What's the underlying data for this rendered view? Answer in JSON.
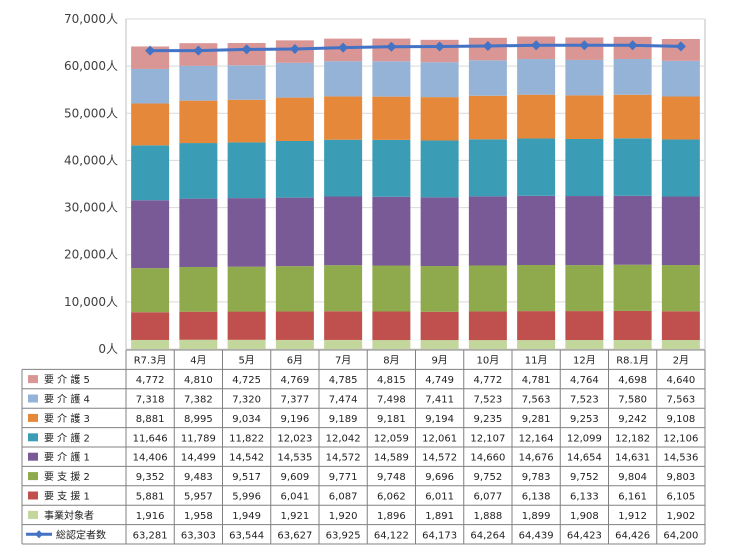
{
  "chart_data": {
    "type": "bar",
    "stacked": true,
    "categories": [
      "R7.3月",
      "4月",
      "5月",
      "6月",
      "7月",
      "8月",
      "9月",
      "10月",
      "11月",
      "12月",
      "R8.1月",
      "2月"
    ],
    "y_ticks": [
      "0人",
      "10,000人",
      "20,000人",
      "30,000人",
      "40,000人",
      "50,000人",
      "60,000人",
      "70,000人"
    ],
    "ylim": [
      0,
      70000
    ],
    "grid": true,
    "legend_placement": "table-left",
    "series": [
      {
        "name": "事業対象者",
        "color": "#c3d69b",
        "values": [
          1916,
          1958,
          1949,
          1921,
          1920,
          1896,
          1891,
          1888,
          1899,
          1908,
          1912,
          1902
        ],
        "labels": [
          "1,916",
          "1,958",
          "1,949",
          "1,921",
          "1,920",
          "1,896",
          "1,891",
          "1,888",
          "1,899",
          "1,908",
          "1,912",
          "1,902"
        ]
      },
      {
        "name": "要 支 援 1",
        "color": "#c0504d",
        "values": [
          5881,
          5957,
          5996,
          6041,
          6087,
          6062,
          6011,
          6077,
          6138,
          6133,
          6161,
          6105
        ],
        "labels": [
          "5,881",
          "5,957",
          "5,996",
          "6,041",
          "6,087",
          "6,062",
          "6,011",
          "6,077",
          "6,138",
          "6,133",
          "6,161",
          "6,105"
        ]
      },
      {
        "name": "要 支 援 2",
        "color": "#8faa4c",
        "values": [
          9352,
          9483,
          9517,
          9609,
          9771,
          9748,
          9696,
          9752,
          9783,
          9752,
          9804,
          9803
        ],
        "labels": [
          "9,352",
          "9,483",
          "9,517",
          "9,609",
          "9,771",
          "9,748",
          "9,696",
          "9,752",
          "9,783",
          "9,752",
          "9,804",
          "9,803"
        ]
      },
      {
        "name": "要 介 護 1",
        "color": "#7a5a96",
        "values": [
          14406,
          14499,
          14542,
          14535,
          14572,
          14589,
          14572,
          14660,
          14676,
          14654,
          14631,
          14536
        ],
        "labels": [
          "14,406",
          "14,499",
          "14,542",
          "14,535",
          "14,572",
          "14,589",
          "14,572",
          "14,660",
          "14,676",
          "14,654",
          "14,631",
          "14,536"
        ]
      },
      {
        "name": "要 介 護 2",
        "color": "#3b9db5",
        "values": [
          11646,
          11789,
          11822,
          12023,
          12042,
          12059,
          12061,
          12107,
          12164,
          12099,
          12182,
          12106
        ],
        "labels": [
          "11,646",
          "11,789",
          "11,822",
          "12,023",
          "12,042",
          "12,059",
          "12,061",
          "12,107",
          "12,164",
          "12,099",
          "12,182",
          "12,106"
        ]
      },
      {
        "name": "要 介 護 3",
        "color": "#e5883a",
        "values": [
          8881,
          8995,
          9034,
          9196,
          9189,
          9181,
          9194,
          9235,
          9281,
          9253,
          9242,
          9108
        ],
        "labels": [
          "8,881",
          "8,995",
          "9,034",
          "9,196",
          "9,189",
          "9,181",
          "9,194",
          "9,235",
          "9,281",
          "9,253",
          "9,242",
          "9,108"
        ]
      },
      {
        "name": "要 介 護 4",
        "color": "#95b3d7",
        "values": [
          7318,
          7382,
          7320,
          7377,
          7474,
          7498,
          7411,
          7523,
          7563,
          7523,
          7580,
          7563
        ],
        "labels": [
          "7,318",
          "7,382",
          "7,320",
          "7,377",
          "7,474",
          "7,498",
          "7,411",
          "7,523",
          "7,563",
          "7,523",
          "7,580",
          "7,563"
        ]
      },
      {
        "name": "要 介 護 5",
        "color": "#d99694",
        "values": [
          4772,
          4810,
          4725,
          4769,
          4785,
          4815,
          4749,
          4772,
          4781,
          4764,
          4698,
          4640
        ],
        "labels": [
          "4,772",
          "4,810",
          "4,725",
          "4,769",
          "4,785",
          "4,815",
          "4,749",
          "4,772",
          "4,781",
          "4,764",
          "4,698",
          "4,640"
        ]
      }
    ],
    "line": {
      "name": "総認定者数",
      "color": "#4472c4",
      "values": [
        63281,
        63303,
        63544,
        63627,
        63925,
        64122,
        64173,
        64264,
        64439,
        64423,
        64426,
        64200
      ],
      "labels": [
        "63,281",
        "63,303",
        "63,544",
        "63,627",
        "63,925",
        "64,122",
        "64,173",
        "64,264",
        "64,439",
        "64,423",
        "64,426",
        "64,200"
      ]
    },
    "table_row_order": [
      "要 介 護 5",
      "要 介 護 4",
      "要 介 護 3",
      "要 介 護 2",
      "要 介 護 1",
      "要 支 援 2",
      "要 支 援 1",
      "事業対象者"
    ]
  }
}
